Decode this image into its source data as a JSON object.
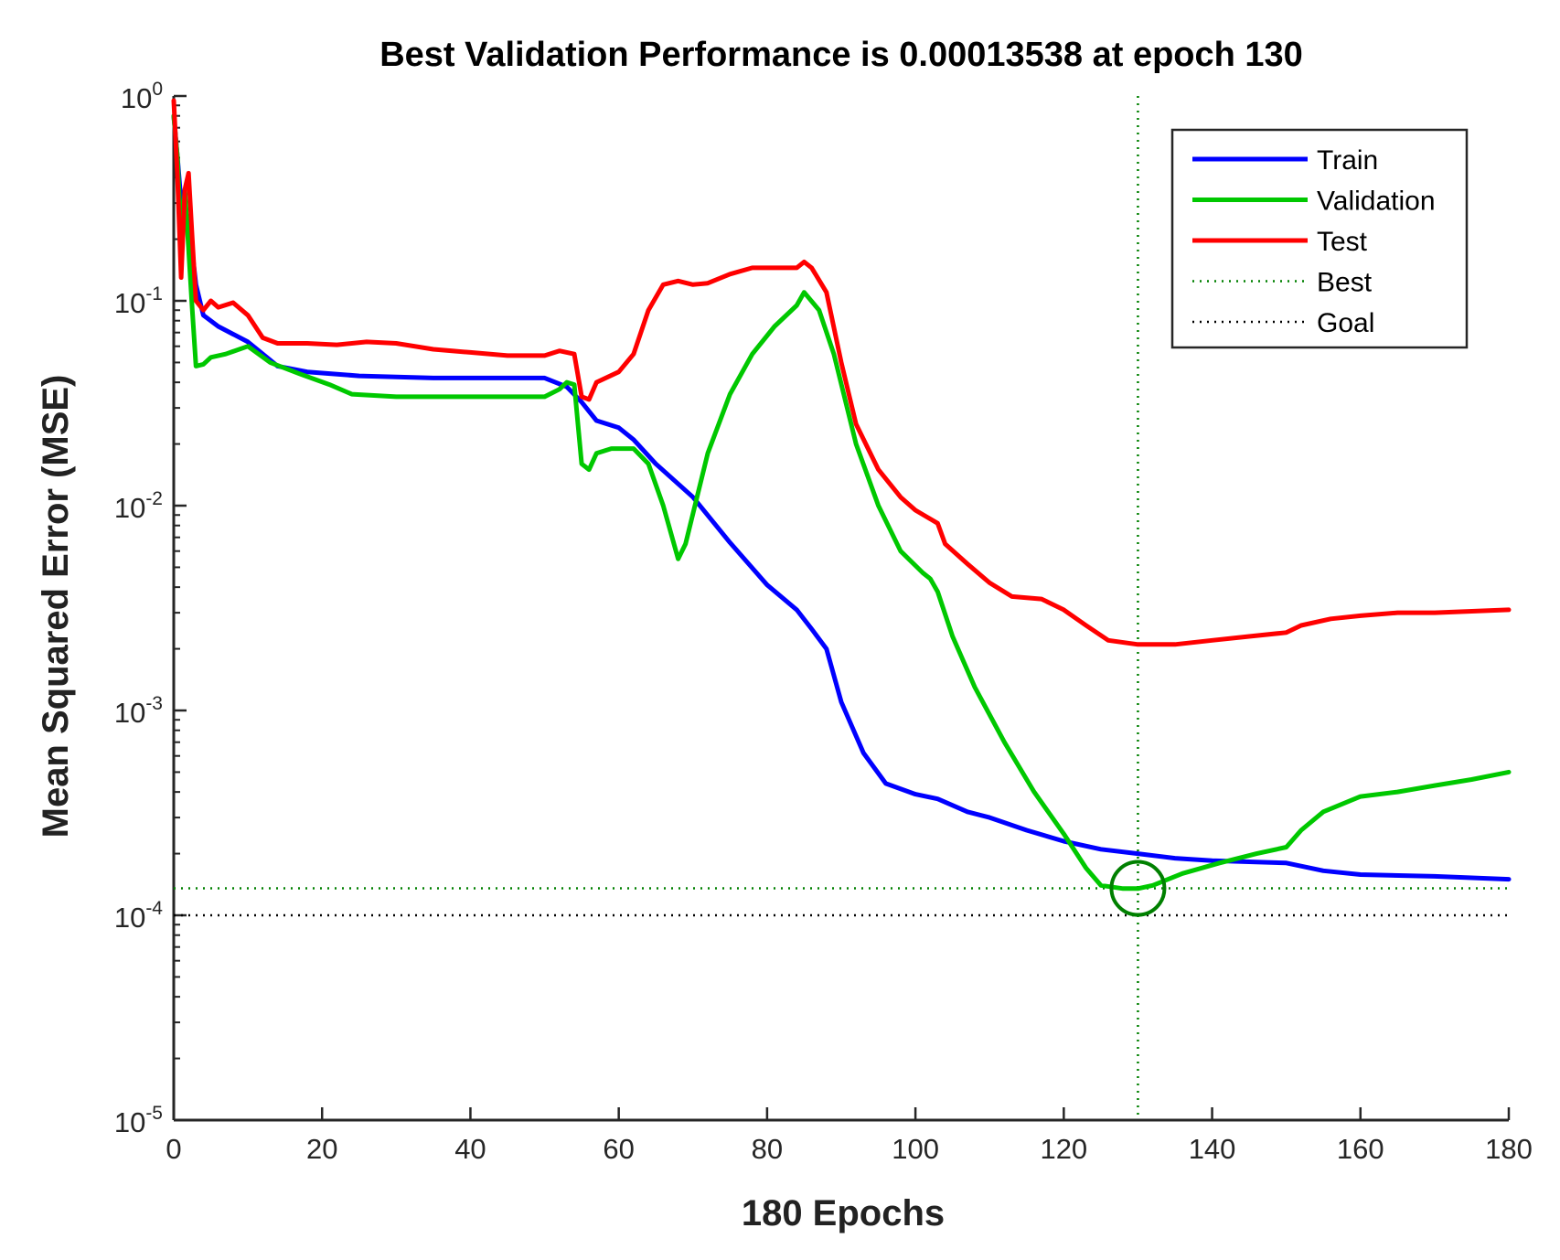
{
  "chart_data": {
    "type": "line",
    "title": "Best Validation Performance is 0.00013538 at epoch 130",
    "xlabel": "180 Epochs",
    "ylabel": "Mean Squared Error  (MSE)",
    "xlim": [
      0,
      180
    ],
    "ylim": [
      1e-05,
      1
    ],
    "yscale": "log",
    "x_ticks": [
      0,
      20,
      40,
      60,
      80,
      100,
      120,
      140,
      160,
      180
    ],
    "x_tick_labels": [
      "0",
      "20",
      "40",
      "60",
      "80",
      "100",
      "120",
      "140",
      "160",
      "180"
    ],
    "y_ticks": [
      {
        "value": 1,
        "base": "10",
        "exp": "0"
      },
      {
        "value": 0.1,
        "base": "10",
        "exp": "-1"
      },
      {
        "value": 0.01,
        "base": "10",
        "exp": "-2"
      },
      {
        "value": 0.001,
        "base": "10",
        "exp": "-3"
      },
      {
        "value": 0.0001,
        "base": "10",
        "exp": "-4"
      },
      {
        "value": 1e-05,
        "base": "10",
        "exp": "-5"
      }
    ],
    "grid": false,
    "legend_position": "top-right",
    "series": [
      {
        "name": "Train",
        "color": "#0000ff",
        "style": "solid",
        "points": [
          [
            0,
            0.8
          ],
          [
            0.5,
            0.5
          ],
          [
            1,
            0.3
          ],
          [
            2,
            0.25
          ],
          [
            3,
            0.12
          ],
          [
            4,
            0.085
          ],
          [
            6,
            0.075
          ],
          [
            10,
            0.063
          ],
          [
            14,
            0.048
          ],
          [
            18,
            0.045
          ],
          [
            25,
            0.043
          ],
          [
            35,
            0.042
          ],
          [
            45,
            0.042
          ],
          [
            50,
            0.042
          ],
          [
            53,
            0.038
          ],
          [
            55,
            0.032
          ],
          [
            57,
            0.026
          ],
          [
            60,
            0.024
          ],
          [
            62,
            0.021
          ],
          [
            65,
            0.016
          ],
          [
            70,
            0.011
          ],
          [
            75,
            0.0066
          ],
          [
            80,
            0.0041
          ],
          [
            84,
            0.0031
          ],
          [
            86,
            0.0025
          ],
          [
            88,
            0.002
          ],
          [
            90,
            0.0011
          ],
          [
            93,
            0.00062
          ],
          [
            96,
            0.00044
          ],
          [
            100,
            0.00039
          ],
          [
            103,
            0.00037
          ],
          [
            107,
            0.00032
          ],
          [
            110,
            0.0003
          ],
          [
            115,
            0.00026
          ],
          [
            120,
            0.00023
          ],
          [
            125,
            0.00021
          ],
          [
            130,
            0.0002
          ],
          [
            135,
            0.00019
          ],
          [
            140,
            0.000185
          ],
          [
            150,
            0.00018
          ],
          [
            155,
            0.000165
          ],
          [
            160,
            0.000158
          ],
          [
            170,
            0.000155
          ],
          [
            180,
            0.00015
          ]
        ]
      },
      {
        "name": "Validation",
        "color": "#00c800",
        "style": "solid",
        "points": [
          [
            0,
            0.8
          ],
          [
            0.5,
            0.5
          ],
          [
            1,
            0.2
          ],
          [
            1.5,
            0.35
          ],
          [
            2,
            0.18
          ],
          [
            2.5,
            0.09
          ],
          [
            3,
            0.048
          ],
          [
            4,
            0.049
          ],
          [
            5,
            0.053
          ],
          [
            7,
            0.055
          ],
          [
            10,
            0.06
          ],
          [
            13,
            0.05
          ],
          [
            17,
            0.044
          ],
          [
            21,
            0.039
          ],
          [
            24,
            0.035
          ],
          [
            30,
            0.034
          ],
          [
            40,
            0.034
          ],
          [
            50,
            0.034
          ],
          [
            52,
            0.037
          ],
          [
            53,
            0.04
          ],
          [
            54,
            0.039
          ],
          [
            55,
            0.016
          ],
          [
            56,
            0.015
          ],
          [
            57,
            0.018
          ],
          [
            59,
            0.019
          ],
          [
            62,
            0.019
          ],
          [
            64,
            0.016
          ],
          [
            66,
            0.01
          ],
          [
            68,
            0.0055
          ],
          [
            69,
            0.0065
          ],
          [
            72,
            0.018
          ],
          [
            75,
            0.035
          ],
          [
            78,
            0.055
          ],
          [
            81,
            0.075
          ],
          [
            84,
            0.095
          ],
          [
            85,
            0.11
          ],
          [
            87,
            0.09
          ],
          [
            89,
            0.055
          ],
          [
            92,
            0.02
          ],
          [
            95,
            0.01
          ],
          [
            98,
            0.006
          ],
          [
            101,
            0.0047
          ],
          [
            102,
            0.0044
          ],
          [
            103,
            0.0038
          ],
          [
            105,
            0.0023
          ],
          [
            108,
            0.0013
          ],
          [
            112,
            0.0007
          ],
          [
            116,
            0.0004
          ],
          [
            120,
            0.00025
          ],
          [
            123,
            0.00017
          ],
          [
            125,
            0.00014
          ],
          [
            128,
            0.000135
          ],
          [
            130,
            0.000135
          ],
          [
            132,
            0.00014
          ],
          [
            136,
            0.00016
          ],
          [
            141,
            0.00018
          ],
          [
            146,
            0.0002
          ],
          [
            150,
            0.000215
          ],
          [
            152,
            0.00026
          ],
          [
            155,
            0.00032
          ],
          [
            160,
            0.00038
          ],
          [
            165,
            0.0004
          ],
          [
            170,
            0.00043
          ],
          [
            175,
            0.00046
          ],
          [
            180,
            0.0005
          ]
        ]
      },
      {
        "name": "Test",
        "color": "#ff0000",
        "style": "solid",
        "points": [
          [
            0,
            0.95
          ],
          [
            0.5,
            0.4
          ],
          [
            1,
            0.13
          ],
          [
            1.5,
            0.35
          ],
          [
            2,
            0.42
          ],
          [
            2.5,
            0.2
          ],
          [
            3,
            0.1
          ],
          [
            4,
            0.09
          ],
          [
            5,
            0.1
          ],
          [
            6,
            0.093
          ],
          [
            8,
            0.098
          ],
          [
            10,
            0.085
          ],
          [
            12,
            0.066
          ],
          [
            14,
            0.062
          ],
          [
            18,
            0.062
          ],
          [
            22,
            0.061
          ],
          [
            26,
            0.063
          ],
          [
            30,
            0.062
          ],
          [
            35,
            0.058
          ],
          [
            40,
            0.056
          ],
          [
            45,
            0.054
          ],
          [
            50,
            0.054
          ],
          [
            52,
            0.057
          ],
          [
            54,
            0.055
          ],
          [
            55,
            0.034
          ],
          [
            56,
            0.033
          ],
          [
            57,
            0.04
          ],
          [
            60,
            0.045
          ],
          [
            62,
            0.055
          ],
          [
            64,
            0.09
          ],
          [
            66,
            0.12
          ],
          [
            68,
            0.125
          ],
          [
            70,
            0.12
          ],
          [
            72,
            0.122
          ],
          [
            75,
            0.135
          ],
          [
            78,
            0.145
          ],
          [
            80,
            0.145
          ],
          [
            84,
            0.145
          ],
          [
            85,
            0.155
          ],
          [
            86,
            0.145
          ],
          [
            88,
            0.11
          ],
          [
            90,
            0.05
          ],
          [
            92,
            0.025
          ],
          [
            95,
            0.015
          ],
          [
            98,
            0.011
          ],
          [
            100,
            0.0095
          ],
          [
            103,
            0.0082
          ],
          [
            104,
            0.0065
          ],
          [
            107,
            0.0052
          ],
          [
            110,
            0.0042
          ],
          [
            113,
            0.0036
          ],
          [
            117,
            0.0035
          ],
          [
            120,
            0.0031
          ],
          [
            123,
            0.0026
          ],
          [
            126,
            0.0022
          ],
          [
            130,
            0.0021
          ],
          [
            135,
            0.0021
          ],
          [
            140,
            0.0022
          ],
          [
            145,
            0.0023
          ],
          [
            150,
            0.0024
          ],
          [
            152,
            0.0026
          ],
          [
            156,
            0.0028
          ],
          [
            160,
            0.0029
          ],
          [
            165,
            0.003
          ],
          [
            170,
            0.003
          ],
          [
            180,
            0.0031
          ]
        ]
      },
      {
        "name": "Best",
        "color": "#008000",
        "style": "dotted",
        "best_epoch": 130,
        "best_value": 0.00013538
      },
      {
        "name": "Goal",
        "color": "#000000",
        "style": "dotted",
        "value": 0.0001
      }
    ],
    "annotations": [
      {
        "type": "circle",
        "x": 130,
        "y": 0.00013538,
        "color": "#008000"
      }
    ]
  }
}
